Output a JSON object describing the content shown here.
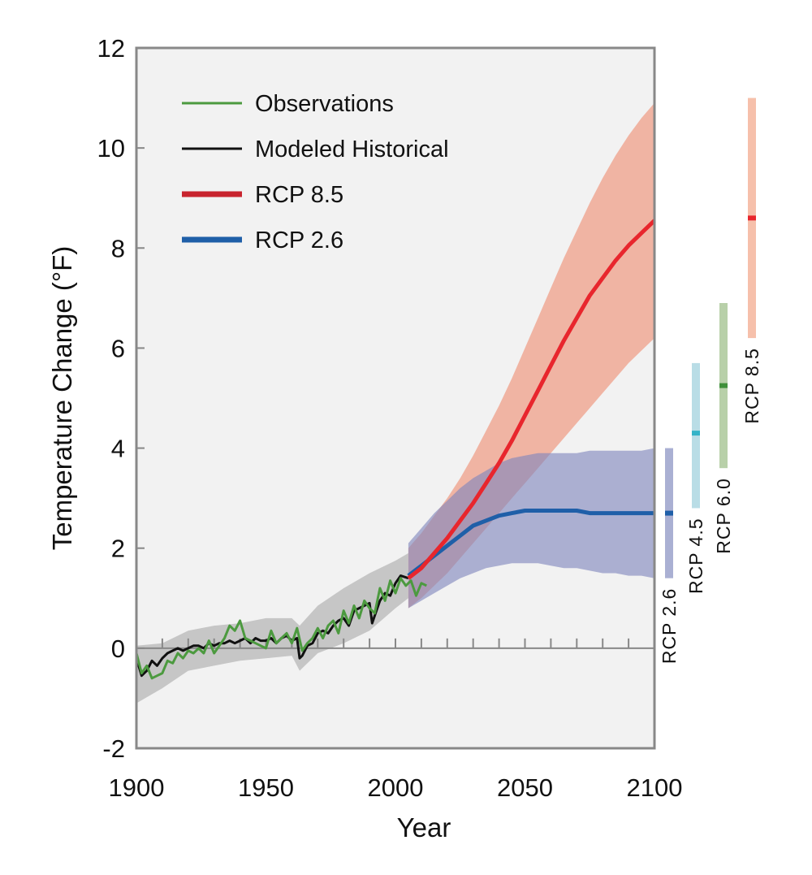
{
  "chart_data": {
    "type": "line",
    "xlabel": "Year",
    "ylabel": "Temperature Change (°F)",
    "xlim": [
      1900,
      2100
    ],
    "ylim": [
      -2,
      12
    ],
    "x_ticks": [
      "1900",
      "1950",
      "2000",
      "2050",
      "2100"
    ],
    "y_ticks": [
      "-2",
      "0",
      "2",
      "4",
      "6",
      "8",
      "10",
      "12"
    ],
    "legend_placement": "top-left",
    "legend": [
      {
        "label": "Observations",
        "color": "#4c9a3f",
        "series": "observations"
      },
      {
        "label": "Modeled Historical",
        "color": "#111111",
        "series": "modeled_historical"
      },
      {
        "label": "RCP 8.5",
        "color": "#c8242e",
        "series": "rcp85"
      },
      {
        "label": "RCP 2.6",
        "color": "#1f5fa8",
        "series": "rcp26"
      }
    ],
    "series": {
      "observations": {
        "name": "Observations",
        "color": "#4c9a3f",
        "x": [
          1900,
          1902,
          1904,
          1906,
          1908,
          1910,
          1912,
          1914,
          1916,
          1918,
          1920,
          1922,
          1924,
          1926,
          1928,
          1930,
          1932,
          1934,
          1936,
          1938,
          1940,
          1942,
          1944,
          1946,
          1948,
          1950,
          1952,
          1954,
          1956,
          1958,
          1960,
          1962,
          1964,
          1966,
          1968,
          1970,
          1972,
          1974,
          1976,
          1978,
          1980,
          1982,
          1984,
          1986,
          1988,
          1990,
          1992,
          1994,
          1996,
          1998,
          2000,
          2002,
          2004,
          2006,
          2008,
          2010,
          2012
        ],
        "y": [
          -0.1,
          -0.5,
          -0.35,
          -0.6,
          -0.55,
          -0.5,
          -0.25,
          -0.3,
          -0.1,
          -0.2,
          -0.05,
          -0.1,
          0.0,
          -0.1,
          0.15,
          -0.1,
          0.05,
          0.2,
          0.45,
          0.35,
          0.55,
          0.2,
          0.15,
          0.1,
          0.05,
          0.0,
          0.35,
          0.1,
          0.2,
          0.3,
          0.1,
          0.4,
          -0.05,
          0.1,
          0.2,
          0.4,
          0.2,
          0.45,
          0.55,
          0.3,
          0.75,
          0.5,
          0.85,
          0.6,
          0.95,
          0.8,
          0.7,
          1.2,
          0.95,
          1.35,
          1.1,
          1.4,
          1.25,
          1.35,
          1.05,
          1.3,
          1.25
        ]
      },
      "modeled_historical": {
        "name": "Modeled Historical",
        "color": "#111111",
        "x": [
          1900,
          1902,
          1904,
          1906,
          1908,
          1910,
          1912,
          1914,
          1916,
          1918,
          1920,
          1922,
          1924,
          1926,
          1928,
          1930,
          1932,
          1934,
          1936,
          1938,
          1940,
          1942,
          1944,
          1946,
          1948,
          1950,
          1952,
          1954,
          1956,
          1958,
          1960,
          1962,
          1963,
          1964,
          1966,
          1968,
          1970,
          1972,
          1974,
          1976,
          1978,
          1980,
          1982,
          1984,
          1986,
          1988,
          1990,
          1991,
          1992,
          1994,
          1996,
          1998,
          2000,
          2002,
          2005
        ],
        "y": [
          -0.2,
          -0.55,
          -0.45,
          -0.25,
          -0.35,
          -0.2,
          -0.1,
          -0.05,
          0.0,
          -0.05,
          0.0,
          0.05,
          0.05,
          0.0,
          0.1,
          0.05,
          0.1,
          0.1,
          0.15,
          0.1,
          0.15,
          0.2,
          0.1,
          0.2,
          0.15,
          0.15,
          0.2,
          0.1,
          0.2,
          0.25,
          0.15,
          0.2,
          -0.2,
          -0.15,
          0.05,
          0.1,
          0.3,
          0.35,
          0.3,
          0.45,
          0.55,
          0.6,
          0.45,
          0.75,
          0.8,
          0.85,
          0.9,
          0.5,
          0.65,
          0.95,
          1.1,
          1.05,
          1.3,
          1.45,
          1.4
        ]
      },
      "historical_range": {
        "x": [
          1900,
          1910,
          1920,
          1930,
          1940,
          1950,
          1960,
          1963,
          1970,
          1980,
          1990,
          2000,
          2005
        ],
        "low": [
          -1.1,
          -0.8,
          -0.45,
          -0.35,
          -0.25,
          -0.2,
          -0.15,
          -0.45,
          -0.1,
          0.1,
          0.35,
          0.8,
          1.0
        ],
        "high": [
          0.05,
          0.1,
          0.35,
          0.45,
          0.5,
          0.6,
          0.6,
          0.45,
          0.85,
          1.2,
          1.5,
          1.75,
          1.9
        ]
      },
      "rcp85": {
        "name": "RCP 8.5",
        "color": "#e8262d",
        "x": [
          2005,
          2010,
          2015,
          2020,
          2025,
          2030,
          2035,
          2040,
          2045,
          2050,
          2055,
          2060,
          2065,
          2070,
          2075,
          2080,
          2085,
          2090,
          2095,
          2100
        ],
        "y": [
          1.4,
          1.6,
          1.9,
          2.2,
          2.55,
          2.9,
          3.3,
          3.7,
          4.15,
          4.65,
          5.15,
          5.65,
          6.15,
          6.6,
          7.05,
          7.4,
          7.75,
          8.05,
          8.3,
          8.55
        ],
        "low": [
          0.8,
          1.0,
          1.25,
          1.5,
          1.8,
          2.1,
          2.4,
          2.7,
          3.0,
          3.3,
          3.6,
          3.9,
          4.2,
          4.5,
          4.8,
          5.1,
          5.4,
          5.7,
          5.95,
          6.2
        ],
        "high": [
          2.0,
          2.3,
          2.65,
          3.0,
          3.4,
          3.85,
          4.35,
          4.85,
          5.4,
          6.0,
          6.6,
          7.2,
          7.8,
          8.35,
          8.9,
          9.4,
          9.85,
          10.25,
          10.6,
          10.9
        ]
      },
      "rcp26": {
        "name": "RCP 2.6",
        "color": "#1f5fa8",
        "x": [
          2005,
          2010,
          2015,
          2020,
          2025,
          2030,
          2035,
          2040,
          2045,
          2050,
          2055,
          2060,
          2065,
          2070,
          2075,
          2080,
          2085,
          2090,
          2095,
          2100
        ],
        "y": [
          1.45,
          1.65,
          1.85,
          2.05,
          2.25,
          2.45,
          2.55,
          2.65,
          2.7,
          2.75,
          2.75,
          2.75,
          2.75,
          2.75,
          2.7,
          2.7,
          2.7,
          2.7,
          2.7,
          2.7
        ],
        "low": [
          0.8,
          0.95,
          1.1,
          1.25,
          1.4,
          1.5,
          1.6,
          1.65,
          1.7,
          1.7,
          1.7,
          1.65,
          1.6,
          1.6,
          1.55,
          1.5,
          1.5,
          1.45,
          1.45,
          1.4
        ],
        "high": [
          2.1,
          2.4,
          2.7,
          2.95,
          3.2,
          3.4,
          3.55,
          3.7,
          3.8,
          3.85,
          3.9,
          3.9,
          3.9,
          3.9,
          3.95,
          3.95,
          3.95,
          3.95,
          3.95,
          4.0
        ]
      }
    },
    "range_bars": [
      {
        "label": "RCP 2.6",
        "low": 1.4,
        "high": 4.0,
        "mean": 2.7,
        "color": "#aab0d3",
        "mean_color": "#1f5fa8"
      },
      {
        "label": "RCP 4.5",
        "low": 2.8,
        "high": 5.7,
        "mean": 4.3,
        "color": "#b9dde6",
        "mean_color": "#34b3c8"
      },
      {
        "label": "RCP 6.0",
        "low": 3.6,
        "high": 6.9,
        "mean": 5.25,
        "color": "#b8d0a9",
        "mean_color": "#3f8f3a"
      },
      {
        "label": "RCP 8.5",
        "low": 6.2,
        "high": 11.0,
        "mean": 8.6,
        "color": "#f6c0ab",
        "mean_color": "#e8262d"
      }
    ]
  }
}
